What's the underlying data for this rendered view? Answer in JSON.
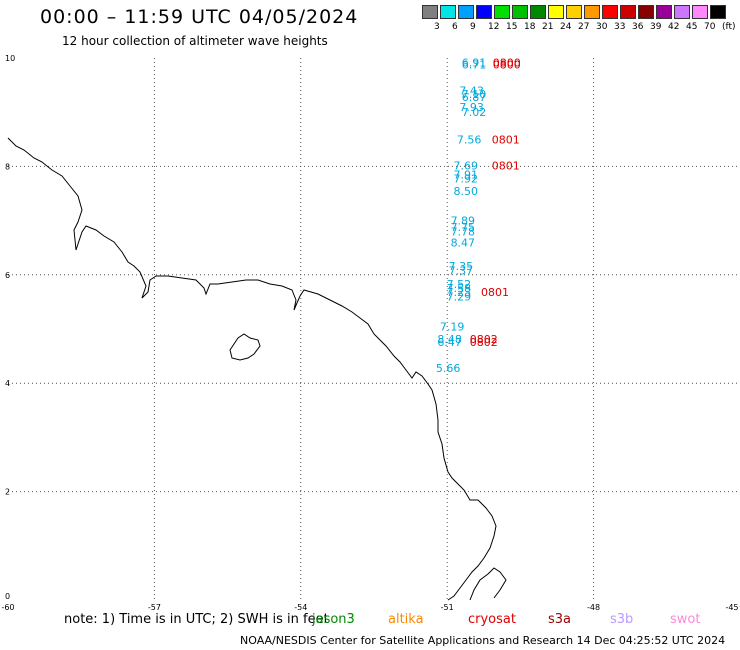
{
  "header": {
    "title": "00:00 – 11:59 UTC 04/05/2024",
    "subtitle": "12 hour collection of altimeter wave heights"
  },
  "colorbar": {
    "colors": [
      "#808080",
      "#00e5e5",
      "#00a0ff",
      "#0000ff",
      "#00e000",
      "#00c000",
      "#008800",
      "#ffff00",
      "#ffd000",
      "#ff9900",
      "#ff0000",
      "#cc0000",
      "#880000",
      "#990099",
      "#cc77ff",
      "#ff88ff",
      "#000000"
    ],
    "labels": [
      "3",
      "6",
      "9",
      "12",
      "15",
      "18",
      "21",
      "24",
      "27",
      "30",
      "33",
      "36",
      "39",
      "42",
      "45",
      "70",
      "(ft)"
    ]
  },
  "axes": {
    "x_ticks": [
      "-60",
      "-57",
      "-54",
      "-51",
      "-48",
      "-45"
    ],
    "y_ticks": [
      "0",
      "2",
      "4",
      "6",
      "8",
      "10"
    ]
  },
  "observations": [
    {
      "text": "6.91",
      "color": "#00aadd",
      "lon": -50.45,
      "lat": 9.92
    },
    {
      "text": "6.71",
      "color": "#00aadd",
      "lon": -50.45,
      "lat": 9.88
    },
    {
      "text": "0800",
      "color": "#dd0000",
      "lon": -49.78,
      "lat": 9.92
    },
    {
      "text": "0800",
      "color": "#dd0000",
      "lon": -49.78,
      "lat": 9.88
    },
    {
      "text": "7.43",
      "color": "#00aadd",
      "lon": -50.5,
      "lat": 9.4
    },
    {
      "text": "7.10",
      "color": "#00aadd",
      "lon": -50.45,
      "lat": 9.34
    },
    {
      "text": "6.87",
      "color": "#00aadd",
      "lon": -50.45,
      "lat": 9.28
    },
    {
      "text": "7.93",
      "color": "#00aadd",
      "lon": -50.5,
      "lat": 9.1
    },
    {
      "text": "7.02",
      "color": "#00aadd",
      "lon": -50.45,
      "lat": 9.0
    },
    {
      "text": "7.56",
      "color": "#00aadd",
      "lon": -50.55,
      "lat": 8.5
    },
    {
      "text": "0801",
      "color": "#dd0000",
      "lon": -49.8,
      "lat": 8.5
    },
    {
      "text": "7.69",
      "color": "#00aadd",
      "lon": -50.62,
      "lat": 8.02
    },
    {
      "text": "0801",
      "color": "#dd0000",
      "lon": -49.8,
      "lat": 8.02
    },
    {
      "text": "7.91",
      "color": "#00aadd",
      "lon": -50.62,
      "lat": 7.85
    },
    {
      "text": "7.92",
      "color": "#00aadd",
      "lon": -50.62,
      "lat": 7.78
    },
    {
      "text": "8.50",
      "color": "#00aadd",
      "lon": -50.62,
      "lat": 7.55
    },
    {
      "text": "7.89",
      "color": "#00aadd",
      "lon": -50.68,
      "lat": 7.0
    },
    {
      "text": "7.75",
      "color": "#00aadd",
      "lon": -50.68,
      "lat": 6.88
    },
    {
      "text": "7.78",
      "color": "#00aadd",
      "lon": -50.68,
      "lat": 6.8
    },
    {
      "text": "8.47",
      "color": "#00aadd",
      "lon": -50.68,
      "lat": 6.6
    },
    {
      "text": "7.35",
      "color": "#00aadd",
      "lon": -50.72,
      "lat": 6.16
    },
    {
      "text": "7.37",
      "color": "#00aadd",
      "lon": -50.72,
      "lat": 6.08
    },
    {
      "text": "7.52",
      "color": "#00aadd",
      "lon": -50.76,
      "lat": 5.83
    },
    {
      "text": "7.58",
      "color": "#00aadd",
      "lon": -50.76,
      "lat": 5.76
    },
    {
      "text": "7.23",
      "color": "#00aadd",
      "lon": -50.76,
      "lat": 5.68
    },
    {
      "text": "7.29",
      "color": "#00aadd",
      "lon": -50.76,
      "lat": 5.6
    },
    {
      "text": "0801",
      "color": "#dd0000",
      "lon": -50.02,
      "lat": 5.68
    },
    {
      "text": "7.19",
      "color": "#00aadd",
      "lon": -50.9,
      "lat": 5.05
    },
    {
      "text": "8.48",
      "color": "#00aadd",
      "lon": -50.95,
      "lat": 4.82
    },
    {
      "text": "6.47",
      "color": "#00aadd",
      "lon": -50.95,
      "lat": 4.76
    },
    {
      "text": "0802",
      "color": "#dd0000",
      "lon": -50.25,
      "lat": 4.82
    },
    {
      "text": "0802",
      "color": "#dd0000",
      "lon": -50.25,
      "lat": 4.76
    },
    {
      "text": "5.66",
      "color": "#00aadd",
      "lon": -50.98,
      "lat": 4.28
    }
  ],
  "footer": {
    "note": "note:  1) Time is in UTC;  2) SWH is in feet",
    "satellites": [
      {
        "name": "jason3",
        "color": "#008800"
      },
      {
        "name": "altika",
        "color": "#ff8800"
      },
      {
        "name": "cryosat",
        "color": "#dd0000"
      },
      {
        "name": "s3a",
        "color": "#990000"
      },
      {
        "name": "s3b",
        "color": "#bb99ff"
      },
      {
        "name": "swot",
        "color": "#ff88dd"
      }
    ],
    "credit": "NOAA/NESDIS Center for Satellite Applications and Research     14 Dec 04:25:52 UTC 2024"
  }
}
